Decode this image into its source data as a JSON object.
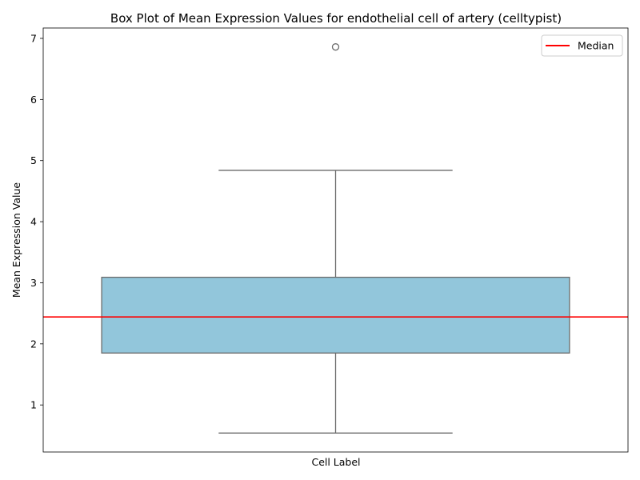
{
  "chart_data": {
    "type": "box",
    "title": "Box Plot of Mean Expression Values for endothelial cell of artery (celltypist)",
    "xlabel": "Cell Label",
    "ylabel": "Mean Expression Value",
    "ylim": [
      0.23,
      7.17
    ],
    "yticks": [
      1,
      2,
      3,
      4,
      5,
      6,
      7
    ],
    "grid": false,
    "legend_position": "top-right",
    "legend": [
      {
        "label": "Median",
        "color": "#ff0000",
        "kind": "line"
      }
    ],
    "boxes": [
      {
        "category": "",
        "whisker_low": 0.54,
        "q1": 1.85,
        "median": 2.44,
        "q3": 3.09,
        "whisker_high": 4.84,
        "outliers": [
          6.86
        ]
      }
    ],
    "median_line": 2.44,
    "colors": {
      "box_fill": "#92c6db",
      "box_edge": "#6b6b6b",
      "median_line": "#ff0000"
    }
  }
}
